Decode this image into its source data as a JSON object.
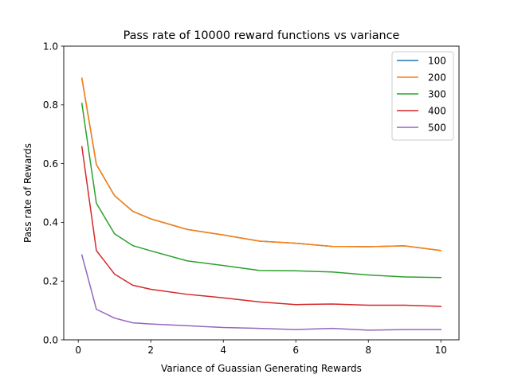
{
  "chart_data": {
    "type": "line",
    "title": "Pass rate of 10000 reward functions vs variance",
    "xlabel": "Variance of Guassian Generating Rewards",
    "ylabel": "Pass rate of Rewards",
    "xlim": [
      -0.4,
      10.5
    ],
    "ylim": [
      0.0,
      1.0
    ],
    "xticks": [
      "0",
      "2",
      "4",
      "6",
      "8",
      "10"
    ],
    "yticks": [
      "0.0",
      "0.2",
      "0.4",
      "0.6",
      "0.8",
      "1.0"
    ],
    "grid": false,
    "legend_position": "top-right",
    "x": [
      0.1,
      0.5,
      1,
      1.5,
      2,
      3,
      4,
      5,
      6,
      7,
      8,
      9,
      10
    ],
    "series": [
      {
        "name": "100",
        "color": "#1f77b4",
        "values": [
          0.891,
          0.597,
          0.491,
          0.438,
          0.412,
          0.376,
          0.357,
          0.336,
          0.329,
          0.318,
          0.317,
          0.32,
          0.304
        ]
      },
      {
        "name": "200",
        "color": "#ff7f0e",
        "values": [
          0.891,
          0.597,
          0.491,
          0.438,
          0.412,
          0.376,
          0.357,
          0.336,
          0.329,
          0.318,
          0.317,
          0.32,
          0.304
        ]
      },
      {
        "name": "300",
        "color": "#2ca02c",
        "values": [
          0.805,
          0.465,
          0.361,
          0.321,
          0.303,
          0.269,
          0.253,
          0.236,
          0.235,
          0.231,
          0.221,
          0.214,
          0.212
        ]
      },
      {
        "name": "400",
        "color": "#d62728",
        "values": [
          0.658,
          0.304,
          0.224,
          0.186,
          0.172,
          0.155,
          0.143,
          0.129,
          0.12,
          0.122,
          0.118,
          0.118,
          0.114
        ]
      },
      {
        "name": "500",
        "color": "#9467bd",
        "values": [
          0.289,
          0.104,
          0.074,
          0.058,
          0.054,
          0.048,
          0.042,
          0.039,
          0.035,
          0.039,
          0.033,
          0.035,
          0.035
        ]
      }
    ]
  }
}
